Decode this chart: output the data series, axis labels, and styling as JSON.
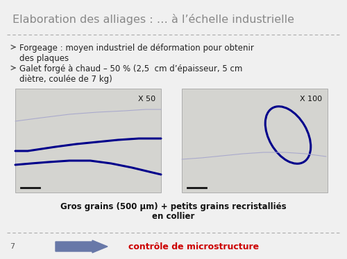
{
  "title": "Elaboration des alliages : … à l’échelle industrielle",
  "title_fontsize": 11.5,
  "title_color": "#888888",
  "bg_color": "#f0f0f0",
  "separator_color": "#aaaaaa",
  "bullet_color": "#222222",
  "bullet_point_1": "Forgeage : moyen industriel de déformation pour obtenir\ndes plaques",
  "bullet_point_2": "Galet forgé à chaud – 50 % (2,5  cm d’épaisseur, 5 cm\ndiètre, coulée de 7 kg)",
  "bullet_fontsize": 8.5,
  "img1_label": "X 50",
  "img2_label": "X 100",
  "caption_line1": "Gros grains (500 μm) + petits grains recristalliés",
  "caption_line2": "en collier",
  "caption_fontsize": 8.5,
  "arrow_color": "#6878a8",
  "footer_text": "contrôle de microstructure",
  "footer_color": "#cc0000",
  "footer_fontsize": 9,
  "page_number": "7",
  "img_bg_color": "#e8e8e8",
  "blue_line_color": "#00008b"
}
